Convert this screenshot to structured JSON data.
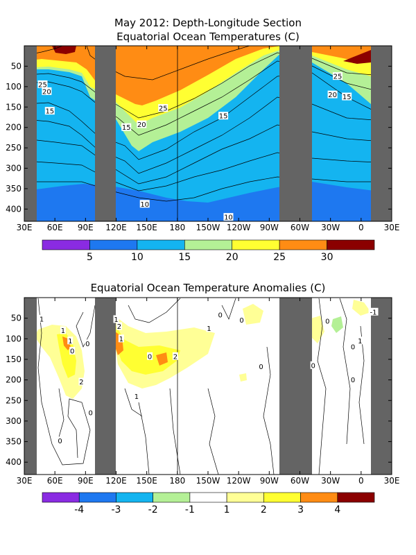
{
  "chart_data": [
    {
      "type": "heatmap",
      "title": "May 2012: Depth-Longitude Section",
      "subtitle": "Equatorial Ocean Temperatures (C)",
      "xlabel": "",
      "ylabel": "",
      "x_ticks": [
        "30E",
        "60E",
        "90E",
        "120E",
        "150E",
        "180",
        "150W",
        "120W",
        "90W",
        "60W",
        "30W",
        "0",
        "30E"
      ],
      "x_tick_lons": [
        30,
        60,
        90,
        120,
        150,
        180,
        210,
        240,
        270,
        300,
        330,
        360,
        390
      ],
      "y_ticks": [
        50,
        100,
        150,
        200,
        250,
        300,
        350,
        400
      ],
      "xlim": [
        30,
        390
      ],
      "ylim": [
        0,
        430
      ],
      "land_masks": [
        [
          30,
          43
        ],
        [
          102,
          118
        ],
        [
          282,
          297
        ],
        [
          383,
          390
        ]
      ],
      "divider_lon": 180,
      "colorbar": {
        "colors": [
          "#8a2be2",
          "#1e78f0",
          "#14b4f0",
          "#b4f096",
          "#ffff32",
          "#ff8c14",
          "#8b0000"
        ],
        "labels": [
          "5",
          "10",
          "15",
          "20",
          "25",
          "30"
        ]
      },
      "contour_labels": [
        {
          "text": "25",
          "lon": 48,
          "depth": 95
        },
        {
          "text": "20",
          "lon": 52,
          "depth": 112
        },
        {
          "text": "15",
          "lon": 55,
          "depth": 160
        },
        {
          "text": "15",
          "lon": 130,
          "depth": 200
        },
        {
          "text": "25",
          "lon": 166,
          "depth": 153
        },
        {
          "text": "20",
          "lon": 145,
          "depth": 193
        },
        {
          "text": "15",
          "lon": 225,
          "depth": 172
        },
        {
          "text": "10",
          "lon": 148,
          "depth": 388
        },
        {
          "text": "10",
          "lon": 230,
          "depth": 420
        },
        {
          "text": "25",
          "lon": 337,
          "depth": 75
        },
        {
          "text": "20",
          "lon": 332,
          "depth": 120
        },
        {
          "text": "15",
          "lon": 346,
          "depth": 125
        }
      ]
    },
    {
      "type": "heatmap",
      "title": "Equatorial Ocean Temperature Anomalies (C)",
      "xlabel": "",
      "ylabel": "",
      "x_ticks": [
        "30E",
        "60E",
        "90E",
        "120E",
        "150E",
        "180",
        "150W",
        "120W",
        "90W",
        "60W",
        "30W",
        "0",
        "30E"
      ],
      "x_tick_lons": [
        30,
        60,
        90,
        120,
        150,
        180,
        210,
        240,
        270,
        300,
        330,
        360,
        390
      ],
      "y_ticks": [
        50,
        100,
        150,
        200,
        250,
        300,
        350,
        400
      ],
      "xlim": [
        30,
        390
      ],
      "ylim": [
        0,
        430
      ],
      "land_masks": [
        [
          30,
          43
        ],
        [
          102,
          118
        ],
        [
          282,
          297
        ],
        [
          383,
          390
        ]
      ],
      "divider_lon": 180,
      "colorbar": {
        "colors": [
          "#8a2be2",
          "#1e78f0",
          "#14b4f0",
          "#b4f096",
          "#ffffff",
          "#ffff96",
          "#ffff32",
          "#ff8c14",
          "#8b0000"
        ],
        "labels": [
          "-4",
          "-3",
          "-2",
          "-1",
          "1",
          "2",
          "3",
          "4"
        ]
      },
      "contour_labels": [
        {
          "text": "1",
          "lon": 47,
          "depth": 52
        },
        {
          "text": "1",
          "lon": 68,
          "depth": 80
        },
        {
          "text": "1",
          "lon": 75,
          "depth": 105
        },
        {
          "text": "0",
          "lon": 77,
          "depth": 130
        },
        {
          "text": "0",
          "lon": 92,
          "depth": 112
        },
        {
          "text": "2",
          "lon": 86,
          "depth": 205
        },
        {
          "text": "0",
          "lon": 95,
          "depth": 280
        },
        {
          "text": "0",
          "lon": 65,
          "depth": 348
        },
        {
          "text": "1",
          "lon": 120,
          "depth": 53
        },
        {
          "text": "2",
          "lon": 123,
          "depth": 70
        },
        {
          "text": "1",
          "lon": 125,
          "depth": 100
        },
        {
          "text": "1",
          "lon": 140,
          "depth": 240
        },
        {
          "text": "2",
          "lon": 178,
          "depth": 143
        },
        {
          "text": "0",
          "lon": 153,
          "depth": 143
        },
        {
          "text": "1",
          "lon": 211,
          "depth": 75
        },
        {
          "text": "0",
          "lon": 222,
          "depth": 42
        },
        {
          "text": "0",
          "lon": 243,
          "depth": 55
        },
        {
          "text": "0",
          "lon": 262,
          "depth": 168
        },
        {
          "text": "0",
          "lon": 327,
          "depth": 57
        },
        {
          "text": "0",
          "lon": 313,
          "depth": 165
        },
        {
          "text": "0",
          "lon": 352,
          "depth": 200
        },
        {
          "text": "1",
          "lon": 359,
          "depth": 105
        },
        {
          "text": "-1",
          "lon": 372,
          "depth": 35
        },
        {
          "text": "0",
          "lon": 352,
          "depth": 120
        }
      ]
    }
  ]
}
